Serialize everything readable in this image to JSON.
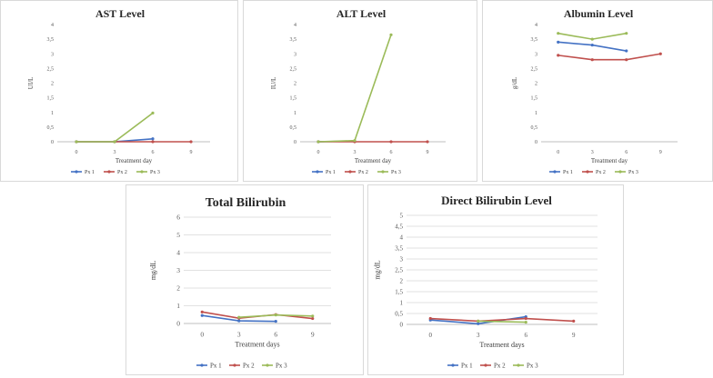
{
  "colors": {
    "px1": "#4472C4",
    "px2": "#C0504D",
    "px3": "#9BBB59",
    "grid": "#d9d9d9",
    "axis": "#bfbfbf"
  },
  "chart_data": [
    {
      "type": "line",
      "title": "AST Level",
      "xlabel": "Treatment  day",
      "ylabel": "UI/L",
      "categories": [
        "0",
        "3",
        "6",
        "9"
      ],
      "yticks": [
        "0",
        "0,5",
        "1",
        "1,5",
        "2",
        "2,5",
        "3",
        "3,5",
        "4"
      ],
      "ylim": [
        0,
        4
      ],
      "grid": false,
      "legend": "bottom",
      "series": [
        {
          "name": "Px 1",
          "values": [
            0,
            0,
            0.1,
            null
          ]
        },
        {
          "name": "Px 2",
          "values": [
            0,
            0,
            0,
            0
          ]
        },
        {
          "name": "Px 3",
          "values": [
            0,
            0,
            0.98,
            null
          ]
        }
      ]
    },
    {
      "type": "line",
      "title": "ALT Level",
      "xlabel": "Treatment  day",
      "ylabel": "IU/L",
      "categories": [
        "0",
        "3",
        "6",
        "9"
      ],
      "yticks": [
        "0",
        "0,5",
        "1",
        "1,5",
        "2",
        "2,5",
        "3",
        "3,5",
        "4"
      ],
      "ylim": [
        0,
        4
      ],
      "grid": false,
      "legend": "bottom",
      "series": [
        {
          "name": "Px 1",
          "values": [
            0,
            0.02,
            null,
            null
          ]
        },
        {
          "name": "Px 2",
          "values": [
            0,
            0,
            0,
            0
          ]
        },
        {
          "name": "Px 3",
          "values": [
            0,
            0.04,
            3.65,
            null
          ]
        }
      ]
    },
    {
      "type": "line",
      "title": "Albumin Level",
      "xlabel": "Treatment  day",
      "ylabel": "g/dL",
      "categories": [
        "0",
        "3",
        "6",
        "9"
      ],
      "yticks": [
        "0",
        "0,5",
        "1",
        "1,5",
        "2",
        "2,5",
        "3",
        "3,5",
        "4"
      ],
      "ylim": [
        0,
        4
      ],
      "grid": false,
      "legend": "bottom",
      "series": [
        {
          "name": "Px 1",
          "values": [
            3.4,
            3.3,
            3.1,
            null
          ]
        },
        {
          "name": "Px 2",
          "values": [
            2.95,
            2.8,
            2.8,
            3.0
          ]
        },
        {
          "name": "Px 3",
          "values": [
            3.7,
            3.5,
            3.7,
            null
          ]
        }
      ]
    },
    {
      "type": "line",
      "title": "Total Bilirubin",
      "xlabel": "Treatment  days",
      "ylabel": "mg/dL",
      "categories": [
        "0",
        "3",
        "6",
        "9"
      ],
      "yticks": [
        "0",
        "1",
        "2",
        "3",
        "4",
        "5",
        "6"
      ],
      "ylim": [
        0,
        6
      ],
      "grid": true,
      "legend": "bottom",
      "series": [
        {
          "name": "Px 1",
          "values": [
            0.45,
            0.15,
            0.12,
            null
          ]
        },
        {
          "name": "Px 2",
          "values": [
            0.65,
            0.3,
            0.5,
            0.28
          ]
        },
        {
          "name": "Px 3",
          "values": [
            null,
            0.35,
            0.48,
            0.42
          ]
        }
      ]
    },
    {
      "type": "line",
      "title": "Direct Bilirubin Level",
      "xlabel": "Treatment  days",
      "ylabel": "mg/dL",
      "categories": [
        "0",
        "3",
        "6",
        "9"
      ],
      "yticks": [
        "0",
        "0,5",
        "1",
        "1,5",
        "2",
        "2,5",
        "3",
        "3,5",
        "4",
        "4,5",
        "5"
      ],
      "ylim": [
        0,
        5
      ],
      "grid": true,
      "legend": "bottom",
      "series": [
        {
          "name": "Px 1",
          "values": [
            0.2,
            0.03,
            0.35,
            null
          ]
        },
        {
          "name": "Px 2",
          "values": [
            0.27,
            0.15,
            0.27,
            0.15
          ]
        },
        {
          "name": "Px 3",
          "values": [
            null,
            0.15,
            0.1,
            null
          ]
        }
      ]
    }
  ]
}
